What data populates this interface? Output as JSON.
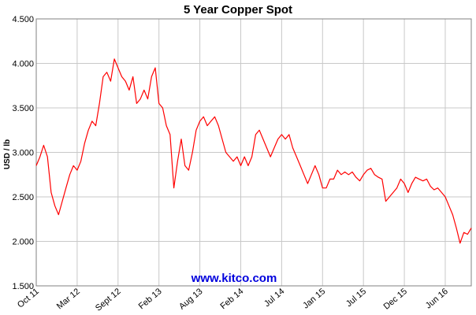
{
  "chart_data": {
    "type": "line",
    "title": "5 Year Copper Spot",
    "y_label": "USD / lb",
    "watermark": "www.kitco.com",
    "categories": [
      "Oct 11",
      null,
      null,
      null,
      null,
      null,
      null,
      null,
      null,
      null,
      null,
      "Mar 12",
      null,
      null,
      null,
      null,
      null,
      null,
      null,
      null,
      null,
      null,
      "Sept 12",
      null,
      null,
      null,
      null,
      null,
      null,
      null,
      null,
      null,
      null,
      "Feb 13",
      null,
      null,
      null,
      null,
      null,
      null,
      null,
      null,
      null,
      null,
      "Aug 13",
      null,
      null,
      null,
      null,
      null,
      null,
      null,
      null,
      null,
      null,
      "Feb 14",
      null,
      null,
      null,
      null,
      null,
      null,
      null,
      null,
      null,
      null,
      "Jul 14",
      null,
      null,
      null,
      null,
      null,
      null,
      null,
      null,
      null,
      null,
      "Jan 15",
      null,
      null,
      null,
      null,
      null,
      null,
      null,
      null,
      null,
      null,
      "Jul 15",
      null,
      null,
      null,
      null,
      null,
      null,
      null,
      null,
      null,
      null,
      "Dec 15",
      null,
      null,
      null,
      null,
      null,
      null,
      null,
      null,
      null,
      null,
      "Jun 16",
      null,
      null,
      null,
      null,
      null,
      null,
      null
    ],
    "values": [
      2.85,
      2.95,
      3.08,
      2.95,
      2.55,
      2.4,
      2.3,
      2.45,
      2.6,
      2.75,
      2.85,
      2.8,
      2.9,
      3.1,
      3.25,
      3.35,
      3.3,
      3.55,
      3.85,
      3.9,
      3.8,
      4.05,
      3.95,
      3.85,
      3.8,
      3.7,
      3.85,
      3.55,
      3.6,
      3.7,
      3.6,
      3.85,
      3.95,
      3.55,
      3.5,
      3.3,
      3.2,
      2.6,
      2.9,
      3.15,
      2.85,
      2.8,
      3.0,
      3.25,
      3.35,
      3.4,
      3.3,
      3.35,
      3.4,
      3.3,
      3.15,
      3.0,
      2.95,
      2.9,
      2.95,
      2.85,
      2.95,
      2.85,
      2.95,
      3.2,
      3.25,
      3.15,
      3.05,
      2.95,
      3.05,
      3.15,
      3.2,
      3.15,
      3.2,
      3.05,
      2.95,
      2.85,
      2.75,
      2.65,
      2.75,
      2.85,
      2.75,
      2.6,
      2.6,
      2.7,
      2.7,
      2.8,
      2.75,
      2.78,
      2.75,
      2.78,
      2.72,
      2.68,
      2.75,
      2.8,
      2.82,
      2.75,
      2.72,
      2.7,
      2.45,
      2.5,
      2.55,
      2.6,
      2.7,
      2.65,
      2.55,
      2.65,
      2.72,
      2.7,
      2.68,
      2.7,
      2.62,
      2.58,
      2.6,
      2.55,
      2.5,
      2.4,
      2.3,
      2.15,
      1.98,
      2.1,
      2.08,
      2.15
    ],
    "color": "#ff0000",
    "ylim": [
      1.5,
      4.5
    ],
    "yticks": [
      {
        "value": 1.5,
        "label": "1.500"
      },
      {
        "value": 2,
        "label": "2.000"
      },
      {
        "value": 2.5,
        "label": "2.500"
      },
      {
        "value": 3,
        "label": "3.000"
      },
      {
        "value": 3.5,
        "label": "3.500"
      },
      {
        "value": 4,
        "label": "4.000"
      },
      {
        "value": 4.5,
        "label": "4.500"
      }
    ],
    "grid": true
  }
}
